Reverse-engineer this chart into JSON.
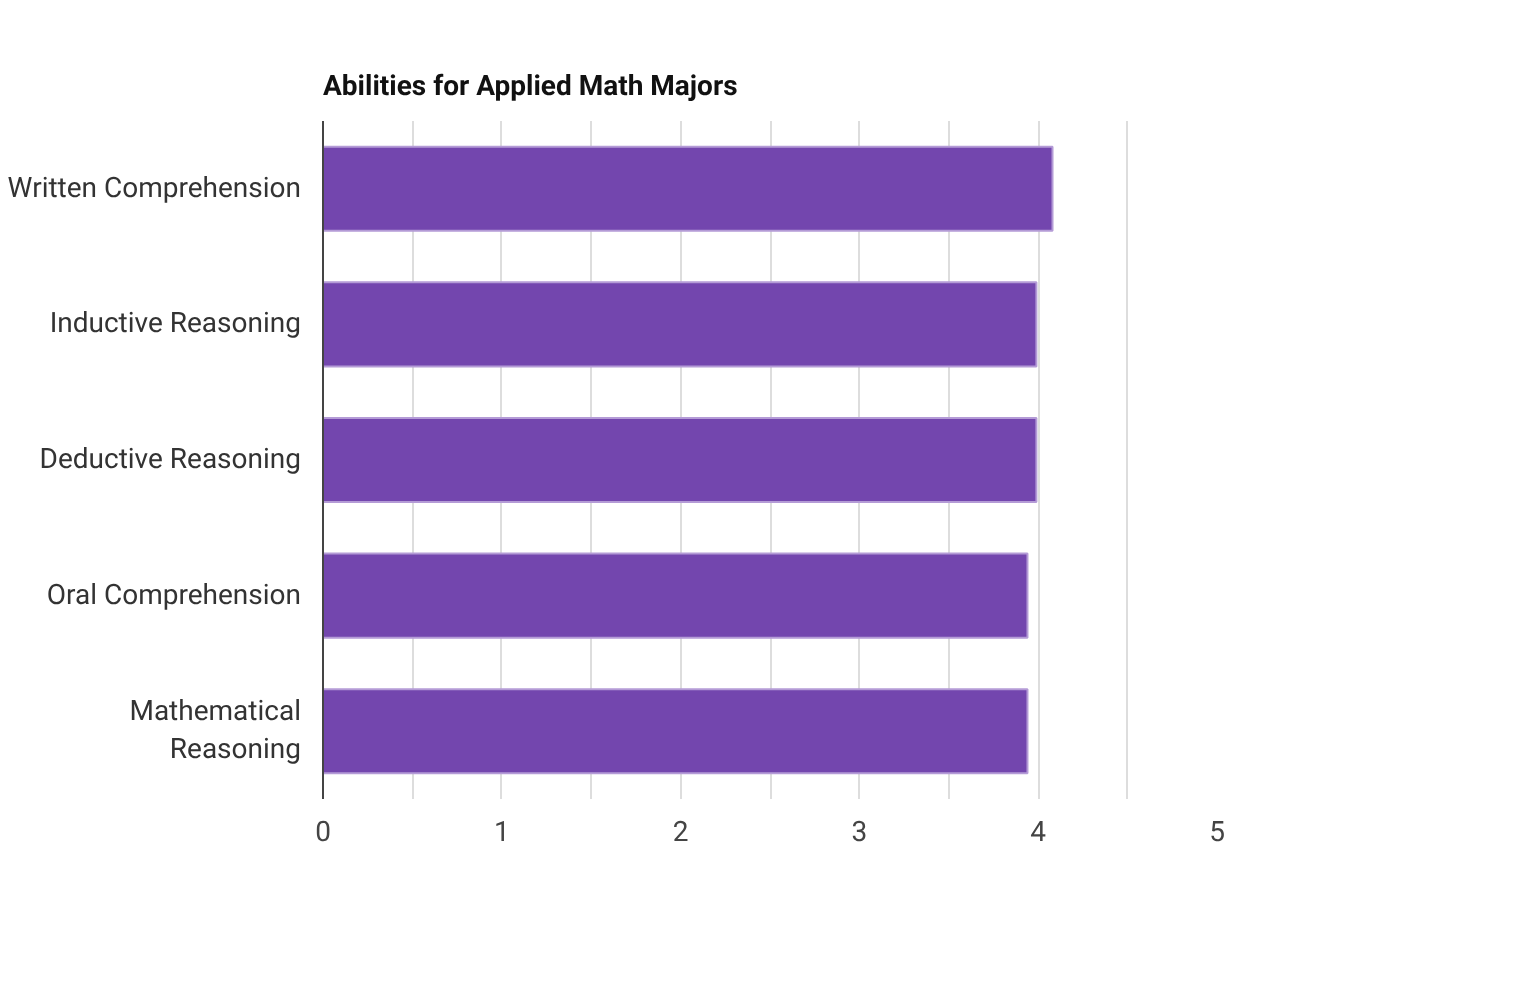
{
  "chart_data": {
    "type": "bar",
    "orientation": "horizontal",
    "title": "Abilities for Applied Math Majors",
    "categories": [
      "Written Comprehension",
      "Inductive Reasoning",
      "Deductive Reasoning",
      "Oral Comprehension",
      "Mathematical\nReasoning"
    ],
    "values": [
      4.08,
      3.99,
      3.99,
      3.94,
      3.94
    ],
    "color": "#7346ae",
    "xlim": [
      0,
      5
    ],
    "xticks": [
      0,
      {
        "value": 0.5,
        "label": null
      },
      1,
      {
        "value": 1.5,
        "label": null
      },
      2,
      {
        "value": 2.5,
        "label": null
      },
      3,
      {
        "value": 3.5,
        "label": null
      },
      4,
      {
        "value": 4.5,
        "label": null
      },
      5
    ],
    "grid": "x"
  }
}
